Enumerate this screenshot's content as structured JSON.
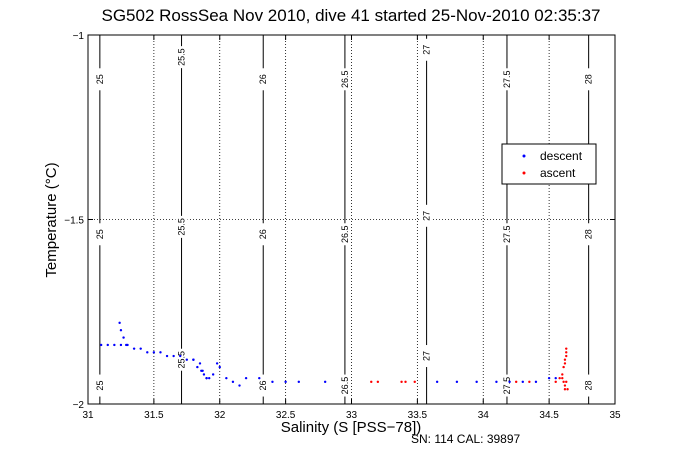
{
  "chart_data": {
    "type": "scatter",
    "title": "SG502 RossSea Nov 2010, dive 41 started 25-Nov-2010 02:35:37",
    "xlabel": "Salinity (S [PSS−78])",
    "ylabel": "Temperature (°C)",
    "xlim": [
      31,
      35
    ],
    "ylim": [
      -2,
      -1
    ],
    "x_ticks": [
      31,
      31.5,
      32,
      32.5,
      33,
      33.5,
      34,
      34.5,
      35
    ],
    "x_tick_labels": [
      "31",
      "31.5",
      "32",
      "32.5",
      "33",
      "33.5",
      "34",
      "34.5",
      "35"
    ],
    "y_ticks": [
      -2,
      -1.5,
      -1
    ],
    "y_tick_labels": [
      "−2",
      "−1.5",
      "−1"
    ],
    "grid": true,
    "legend_position": "right",
    "density_contours": [
      {
        "label": "25",
        "salinity": 31.09,
        "label_temps": [
          -1.12,
          -1.54,
          -1.95
        ]
      },
      {
        "label": "25.5",
        "salinity": 31.71,
        "label_temps": [
          -1.06,
          -1.52,
          -1.88
        ]
      },
      {
        "label": "26",
        "salinity": 32.33,
        "label_temps": [
          -1.12,
          -1.54,
          -1.95
        ]
      },
      {
        "label": "26.5",
        "salinity": 32.95,
        "label_temps": [
          -1.12,
          -1.54,
          -1.95
        ]
      },
      {
        "label": "27",
        "salinity": 33.57,
        "label_temps": [
          -1.04,
          -1.49,
          -1.87
        ]
      },
      {
        "label": "27.5",
        "salinity": 34.18,
        "label_temps": [
          -1.12,
          -1.54,
          -1.95
        ]
      },
      {
        "label": "28",
        "salinity": 34.8,
        "label_temps": [
          -1.12,
          -1.54,
          -1.95
        ]
      }
    ],
    "series": [
      {
        "name": "descent",
        "color": "#0000ff",
        "x": [
          31.24,
          31.25,
          31.27,
          31.29,
          31.1,
          31.15,
          31.2,
          31.25,
          31.3,
          31.35,
          31.4,
          31.45,
          31.5,
          31.55,
          31.6,
          31.65,
          31.7,
          31.75,
          31.8,
          31.83,
          31.86,
          31.88,
          31.9,
          31.92,
          31.95,
          31.98,
          32.0,
          32.05,
          32.1,
          32.15,
          32.2,
          32.3,
          32.4,
          32.5,
          32.6,
          32.8,
          33.65,
          33.8,
          33.95,
          34.1,
          34.2,
          34.3,
          34.4,
          34.5,
          34.55,
          31.8,
          31.85,
          31.87,
          31.9
        ],
        "y": [
          -1.78,
          -1.8,
          -1.82,
          -1.84,
          -1.84,
          -1.84,
          -1.84,
          -1.84,
          -1.84,
          -1.85,
          -1.85,
          -1.86,
          -1.86,
          -1.86,
          -1.87,
          -1.87,
          -1.87,
          -1.88,
          -1.88,
          -1.9,
          -1.91,
          -1.92,
          -1.93,
          -1.93,
          -1.92,
          -1.89,
          -1.9,
          -1.93,
          -1.94,
          -1.95,
          -1.93,
          -1.93,
          -1.94,
          -1.94,
          -1.94,
          -1.94,
          -1.94,
          -1.94,
          -1.94,
          -1.94,
          -1.94,
          -1.94,
          -1.94,
          -1.93,
          -1.93,
          -1.88,
          -1.89,
          -1.91,
          -1.93
        ]
      },
      {
        "name": "ascent",
        "color": "#ff0000",
        "x": [
          33.15,
          33.2,
          33.38,
          33.41,
          33.48,
          34.25,
          34.35,
          34.55,
          34.58,
          34.6,
          34.61,
          34.62,
          34.62,
          34.63,
          34.63,
          34.63,
          34.62,
          34.61,
          34.6,
          34.62,
          34.64,
          34.63
        ],
        "y": [
          -1.94,
          -1.94,
          -1.94,
          -1.94,
          -1.94,
          -1.94,
          -1.94,
          -1.94,
          -1.93,
          -1.92,
          -1.9,
          -1.89,
          -1.88,
          -1.87,
          -1.86,
          -1.85,
          -1.95,
          -1.94,
          -1.93,
          -1.96,
          -1.96,
          -1.94
        ]
      }
    ]
  },
  "footer": {
    "serial": "SN: 114  CAL: 39897"
  }
}
